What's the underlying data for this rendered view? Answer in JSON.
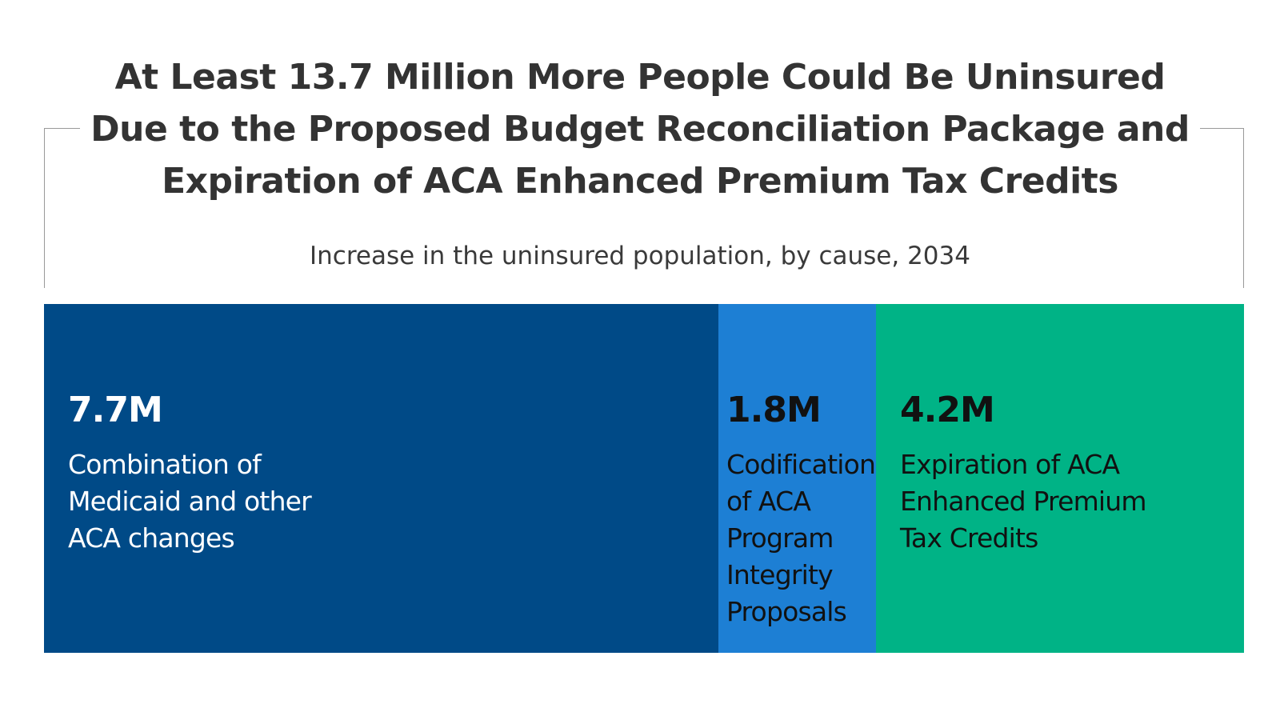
{
  "chart_data": {
    "type": "bar",
    "orientation": "horizontal-stacked",
    "title_lines": [
      "At Least 13.7 Million More People Could Be Uninsured",
      "Due to the Proposed Budget Reconciliation Package and",
      "Expiration of ACA Enhanced Premium Tax Credits"
    ],
    "subtitle": "Increase in the uninsured population, by cause, 2034",
    "total": 13.7,
    "unit": "M",
    "segments": [
      {
        "value": 7.7,
        "value_label": "7.7M",
        "label_lines": [
          "Combination of",
          "Medicaid and other",
          "ACA changes"
        ],
        "color": "#004a87",
        "text_color": "#ffffff"
      },
      {
        "value": 1.8,
        "value_label": "1.8M",
        "label_lines": [
          "Codification",
          "of ACA",
          "Program",
          "Integrity",
          "Proposals"
        ],
        "color": "#1d7fd4",
        "text_color": "#111111"
      },
      {
        "value": 4.2,
        "value_label": "4.2M",
        "label_lines": [
          "Expiration of ACA",
          "Enhanced Premium",
          "Tax Credits"
        ],
        "color": "#00b386",
        "text_color": "#111111"
      }
    ]
  }
}
